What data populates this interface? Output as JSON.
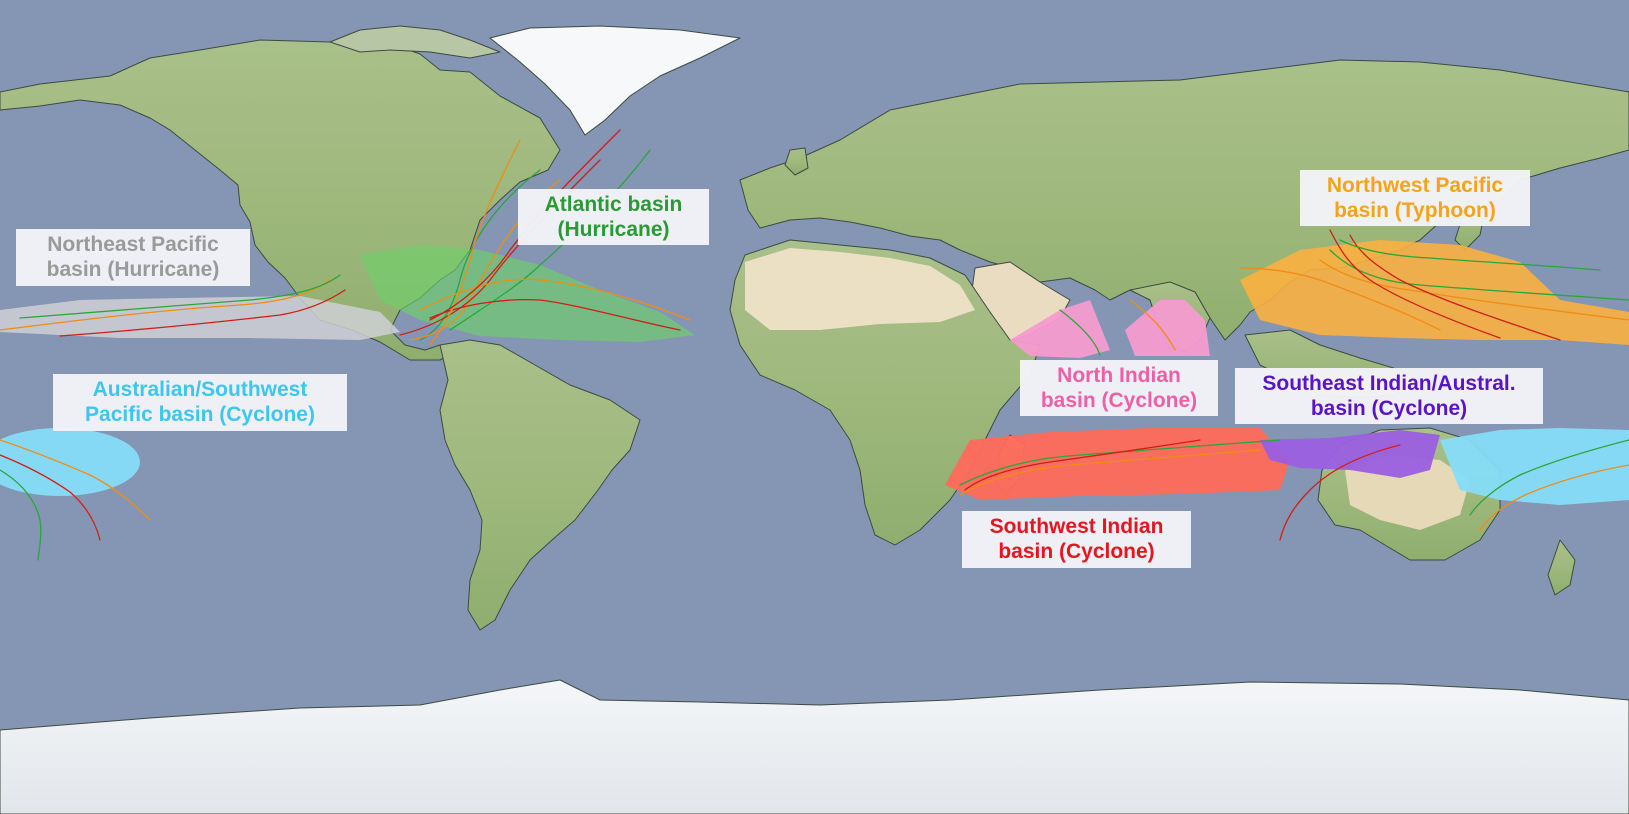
{
  "map": {
    "projection": "equirectangular",
    "legend_colors": {
      "northeast_pacific": "#c8c8cc",
      "atlantic": "#6fcf6a",
      "northwest_pacific": "#fbb040",
      "north_indian": "#f59bd0",
      "southwest_indian": "#ff6a5a",
      "southeast_indian": "#9b5fe0",
      "australian_southwest_pacific": "#86dcf8"
    },
    "track_colors": [
      "#2aa63a",
      "#f08c14",
      "#d21e14"
    ]
  },
  "labels": {
    "northeast_pacific": {
      "line1": "Northeast Pacific",
      "line2": "basin (Hurricane)",
      "color": "#9a9a9a"
    },
    "atlantic": {
      "line1": "Atlantic basin",
      "line2": "(Hurricane)",
      "color": "#2a9a34"
    },
    "northwest_pacific": {
      "line1": "Northwest Pacific",
      "line2": "basin (Typhoon)",
      "color": "#f6a31c"
    },
    "australian_southwest_pacific": {
      "line1": "Australian/Southwest",
      "line2": "Pacific basin (Cyclone)",
      "color": "#3cc6f0"
    },
    "north_indian": {
      "line1": "North Indian",
      "line2": "basin (Cyclone)",
      "color": "#ee5fa8"
    },
    "southeast_indian": {
      "line1": "Southeast Indian/Austral.",
      "line2": "basin (Cyclone)",
      "color": "#5a14c8"
    },
    "southwest_indian": {
      "line1": "Southwest Indian",
      "line2": "basin (Cyclone)",
      "color": "#e8141e"
    }
  }
}
